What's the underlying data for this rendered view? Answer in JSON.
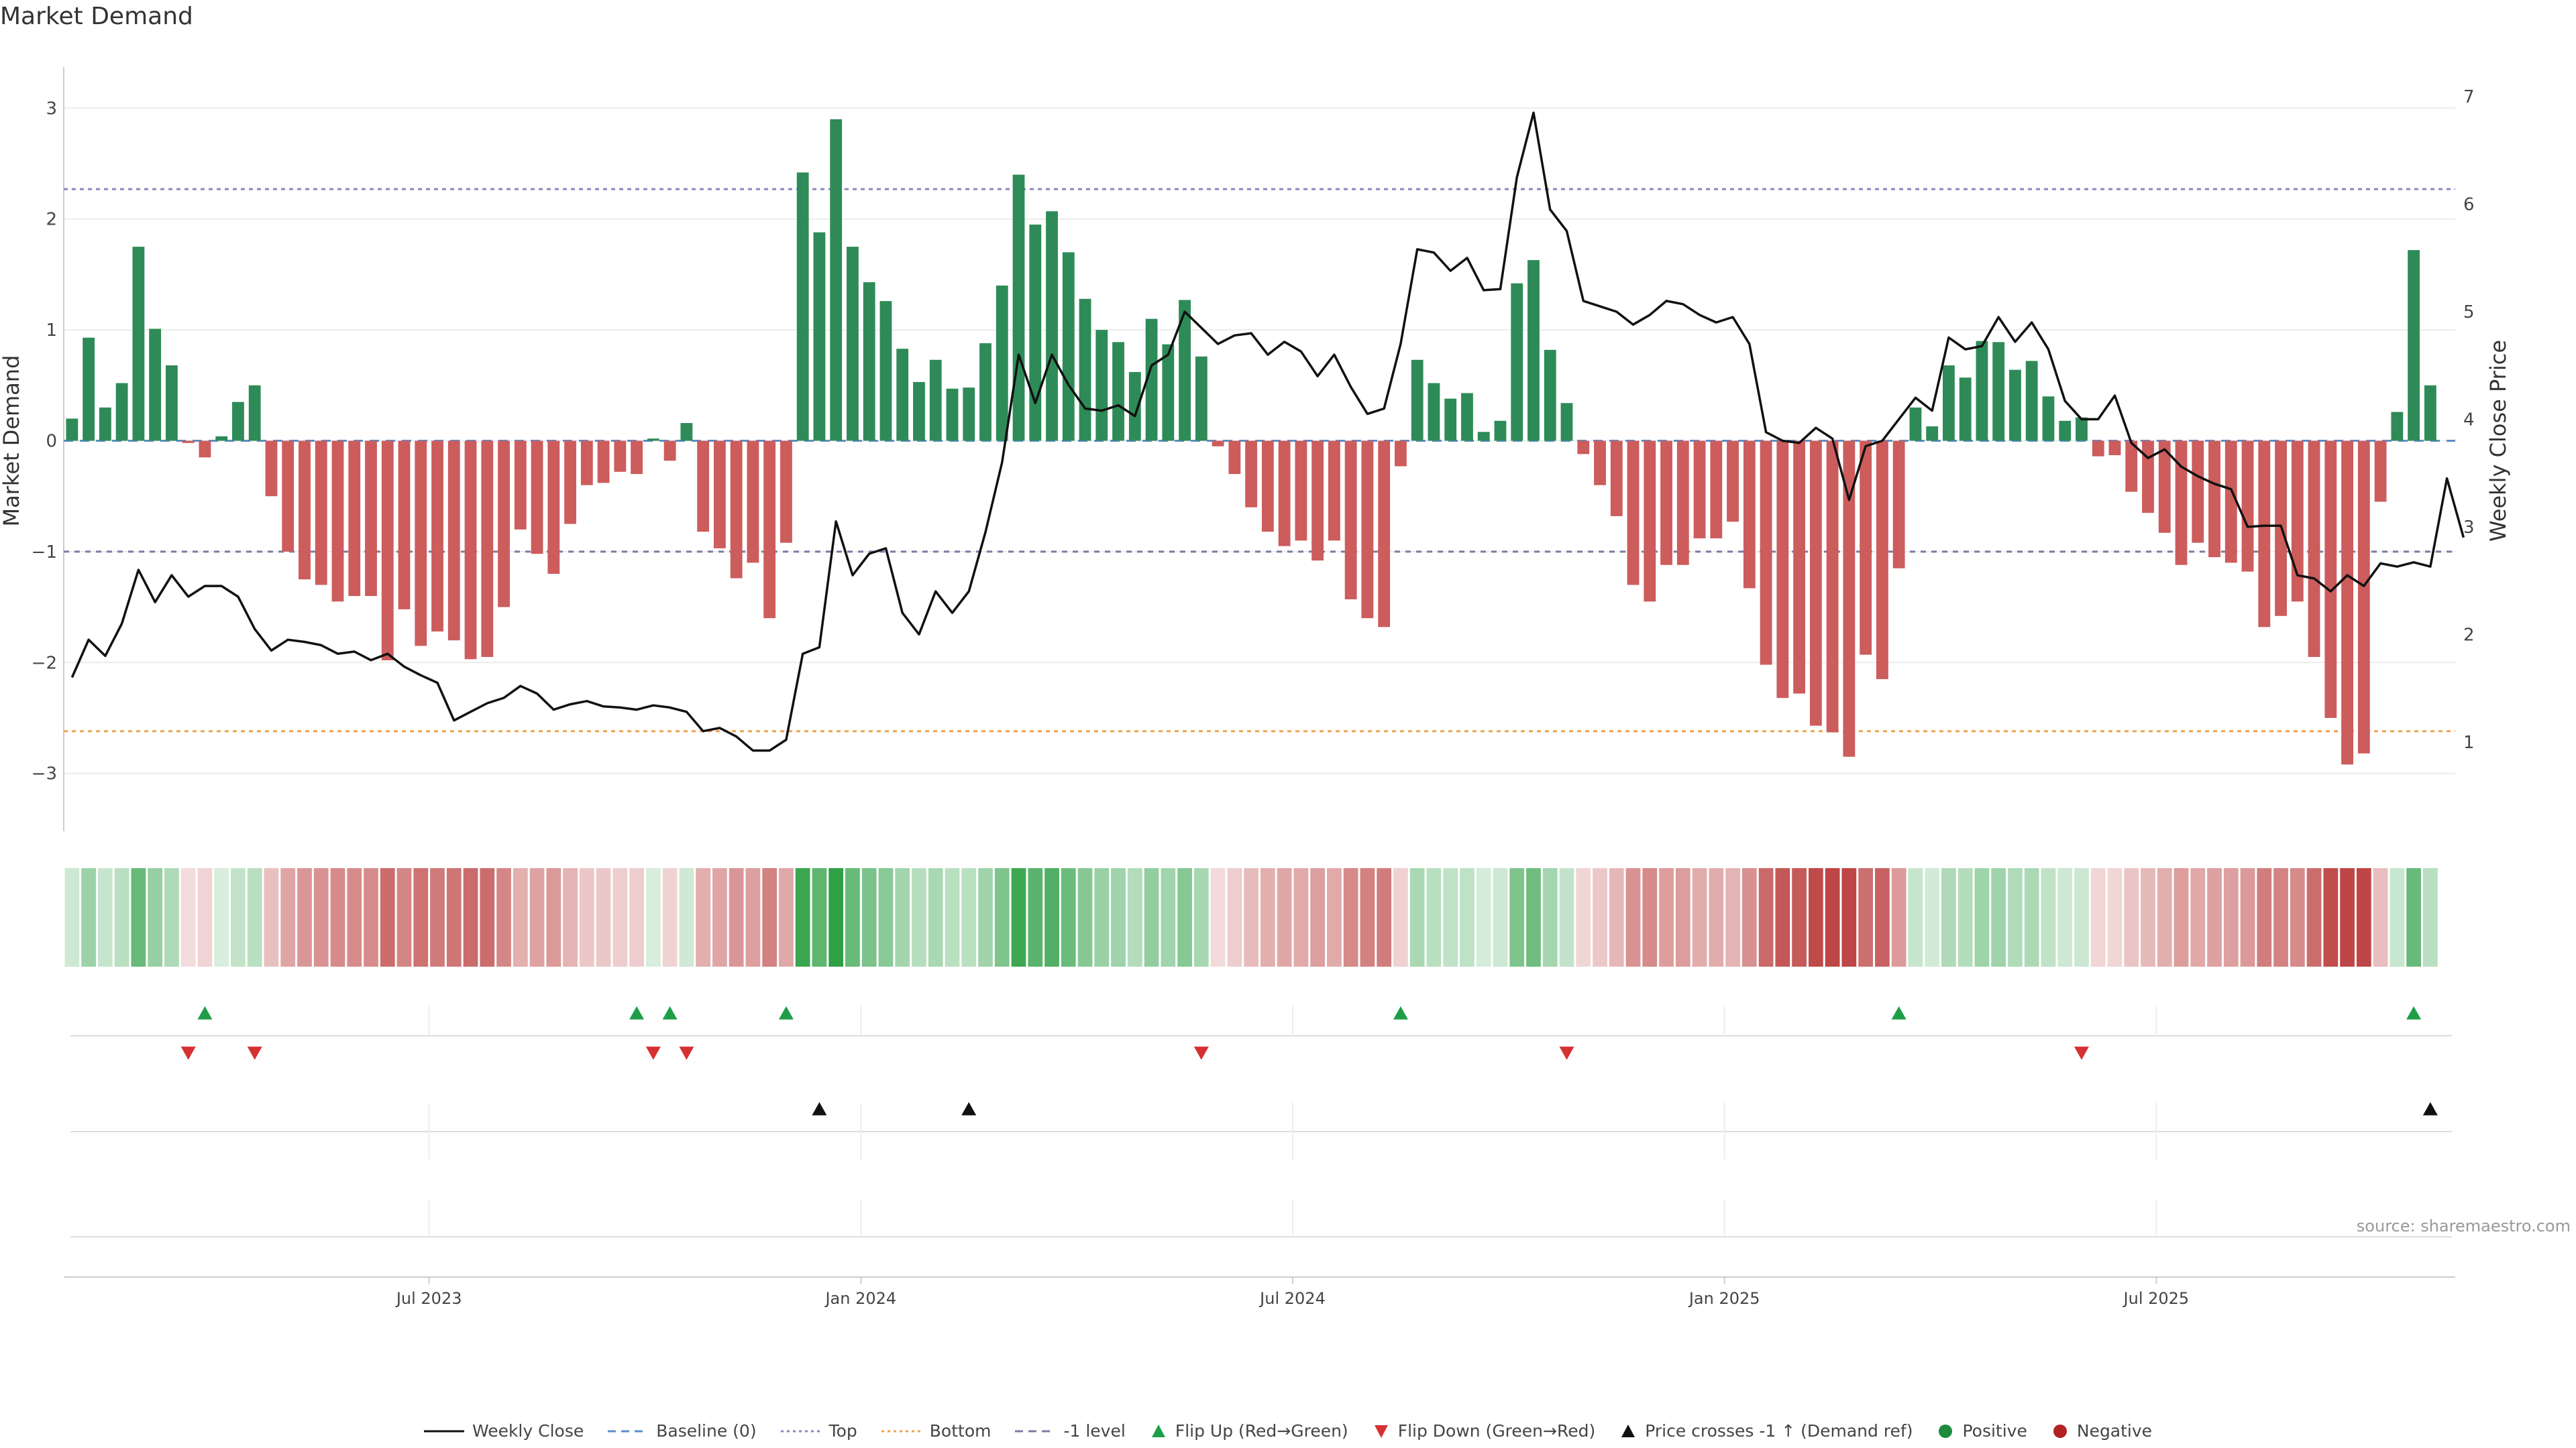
{
  "title": "Market Demand",
  "source": "source: sharemaestro.com",
  "chart_data": {
    "type": "bar",
    "title": "Market Demand",
    "ylabel": "Market Demand",
    "y2label": "Weekly Close Price",
    "ylim": [
      -3.25,
      3.25
    ],
    "y2lim": [
      0.45,
      7.15
    ],
    "yticks": [
      3,
      2,
      1,
      0,
      -1,
      -2,
      -3
    ],
    "yticklabels": [
      "3",
      "2",
      "1",
      "0",
      "−1",
      "−2",
      "−3"
    ],
    "y2ticks": [
      7,
      6,
      5,
      4,
      3,
      2,
      1
    ],
    "y2ticklabels": [
      "7",
      "6",
      "5",
      "4",
      "3",
      "2",
      "1"
    ],
    "xlabels": [
      "Jul 2023",
      "Jan 2024",
      "Jul 2024",
      "Jan 2025",
      "Jul 2025"
    ],
    "xlabel_positions": [
      22,
      48,
      74,
      100,
      126
    ],
    "week_count": 144,
    "demand": [
      0.2,
      0.93,
      0.3,
      0.52,
      1.75,
      1.01,
      0.68,
      -0.02,
      -0.15,
      0.04,
      0.35,
      0.5,
      -0.5,
      -1.0,
      -1.25,
      -1.3,
      -1.45,
      -1.4,
      -1.4,
      -1.98,
      -1.52,
      -1.85,
      -1.72,
      -1.8,
      -1.97,
      -1.95,
      -1.5,
      -0.8,
      -1.02,
      -1.2,
      -0.75,
      -0.4,
      -0.38,
      -0.28,
      -0.3,
      0.02,
      -0.18,
      0.16,
      -0.82,
      -0.97,
      -1.24,
      -1.1,
      -1.6,
      -0.92,
      2.42,
      1.88,
      2.9,
      1.75,
      1.43,
      1.26,
      0.83,
      0.53,
      0.73,
      0.47,
      0.48,
      0.88,
      1.4,
      2.4,
      1.95,
      2.07,
      1.7,
      1.28,
      1.0,
      0.89,
      0.62,
      1.1,
      0.87,
      1.27,
      0.76,
      -0.05,
      -0.3,
      -0.6,
      -0.82,
      -0.95,
      -0.9,
      -1.08,
      -0.9,
      -1.43,
      -1.6,
      -1.68,
      -0.23,
      0.73,
      0.52,
      0.38,
      0.43,
      0.08,
      0.18,
      1.42,
      1.63,
      0.82,
      0.34,
      -0.12,
      -0.4,
      -0.68,
      -1.3,
      -1.45,
      -1.12,
      -1.12,
      -0.88,
      -0.88,
      -0.73,
      -1.33,
      -2.02,
      -2.32,
      -2.28,
      -2.57,
      -2.63,
      -2.85,
      -1.93,
      -2.15,
      -1.15,
      0.3,
      0.13,
      0.68,
      0.57,
      0.9,
      0.89,
      0.64,
      0.72,
      0.4,
      0.18,
      0.21,
      -0.14,
      -0.13,
      -0.46,
      -0.65,
      -0.83,
      -1.12,
      -0.92,
      -1.05,
      -1.1,
      -1.18,
      -1.68,
      -1.58,
      -1.45,
      -1.95,
      -2.5,
      -2.92,
      -2.82,
      -0.55,
      0.26,
      1.72,
      0.5
    ],
    "price": [
      1.6,
      1.95,
      1.8,
      2.1,
      2.6,
      2.3,
      2.55,
      2.35,
      2.45,
      2.45,
      2.35,
      2.05,
      1.85,
      1.95,
      1.93,
      1.9,
      1.82,
      1.84,
      1.76,
      1.82,
      1.7,
      1.62,
      1.55,
      1.2,
      1.28,
      1.36,
      1.41,
      1.52,
      1.45,
      1.3,
      1.35,
      1.38,
      1.33,
      1.32,
      1.3,
      1.34,
      1.32,
      1.28,
      1.1,
      1.13,
      1.05,
      0.92,
      0.92,
      1.02,
      1.82,
      1.88,
      3.05,
      2.55,
      2.75,
      2.8,
      2.2,
      2.0,
      2.4,
      2.2,
      2.4,
      2.95,
      3.6,
      4.6,
      4.15,
      4.6,
      4.32,
      4.1,
      4.08,
      4.13,
      4.03,
      4.5,
      4.6,
      5.0,
      4.85,
      4.7,
      4.78,
      4.8,
      4.6,
      4.72,
      4.63,
      4.4,
      4.6,
      4.3,
      4.05,
      4.1,
      4.7,
      5.58,
      5.55,
      5.38,
      5.5,
      5.2,
      5.21,
      6.25,
      6.85,
      5.95,
      5.75,
      5.1,
      5.05,
      5.0,
      4.88,
      4.97,
      5.1,
      5.07,
      4.97,
      4.9,
      4.95,
      4.7,
      3.88,
      3.8,
      3.78,
      3.92,
      3.82,
      3.25,
      3.75,
      3.8,
      4.0,
      4.2,
      4.08,
      4.76,
      4.65,
      4.68,
      4.95,
      4.72,
      4.9,
      4.65,
      4.17,
      4.0,
      4.0,
      4.22,
      3.78,
      3.64,
      3.72,
      3.56,
      3.47,
      3.4,
      3.35,
      3.0,
      3.01,
      3.01,
      2.55,
      2.52,
      2.4,
      2.55,
      2.45,
      2.66,
      2.63,
      2.67,
      2.63,
      3.45,
      2.9
    ],
    "heatmap_strip": "demand intensity per week (green = positive, red = negative)",
    "reference_lines": [
      {
        "name": "Top",
        "value": 2.27,
        "color": "#8a85c0"
      },
      {
        "name": "-1 level",
        "value": -1,
        "color": "#7d7aa3"
      },
      {
        "name": "Bottom",
        "value": -2.62,
        "color": "#f0a050"
      },
      {
        "name": "Baseline (0)",
        "value": 0,
        "color": "#5b8ec9"
      }
    ],
    "flip_up_weeks": [
      8,
      34,
      36,
      43,
      80,
      110,
      141
    ],
    "flip_down_weeks": [
      7,
      11,
      35,
      37,
      68,
      90,
      121
    ],
    "price_cross_weeks": [
      45,
      54,
      142
    ],
    "colors": {
      "positive": "#2e8b57",
      "negative": "#cd5c5c",
      "flip_up": "#1e9e48",
      "flip_down": "#d63030",
      "cross": "#111111",
      "line": "#111111"
    }
  },
  "legend": {
    "items": [
      {
        "label": "Weekly Close",
        "kind": "line",
        "color": "#111111"
      },
      {
        "label": "Baseline (0)",
        "kind": "dash",
        "color": "#5b8ec9"
      },
      {
        "label": "Top",
        "kind": "dot",
        "color": "#8a85c0"
      },
      {
        "label": "Bottom",
        "kind": "dot",
        "color": "#f0a050"
      },
      {
        "label": "-1 level",
        "kind": "dash",
        "color": "#7d7aa3"
      },
      {
        "label": "Flip Up (Red→Green)",
        "kind": "tri-up",
        "color": "#1e9e48"
      },
      {
        "label": "Flip Down (Green→Red)",
        "kind": "tri-down",
        "color": "#d63030"
      },
      {
        "label": "Price crosses -1 ↑ (Demand ref)",
        "kind": "tri-up",
        "color": "#111111"
      },
      {
        "label": "Positive",
        "kind": "circle",
        "color": "#1e8a3c"
      },
      {
        "label": "Negative",
        "kind": "circle",
        "color": "#b22222"
      }
    ]
  }
}
